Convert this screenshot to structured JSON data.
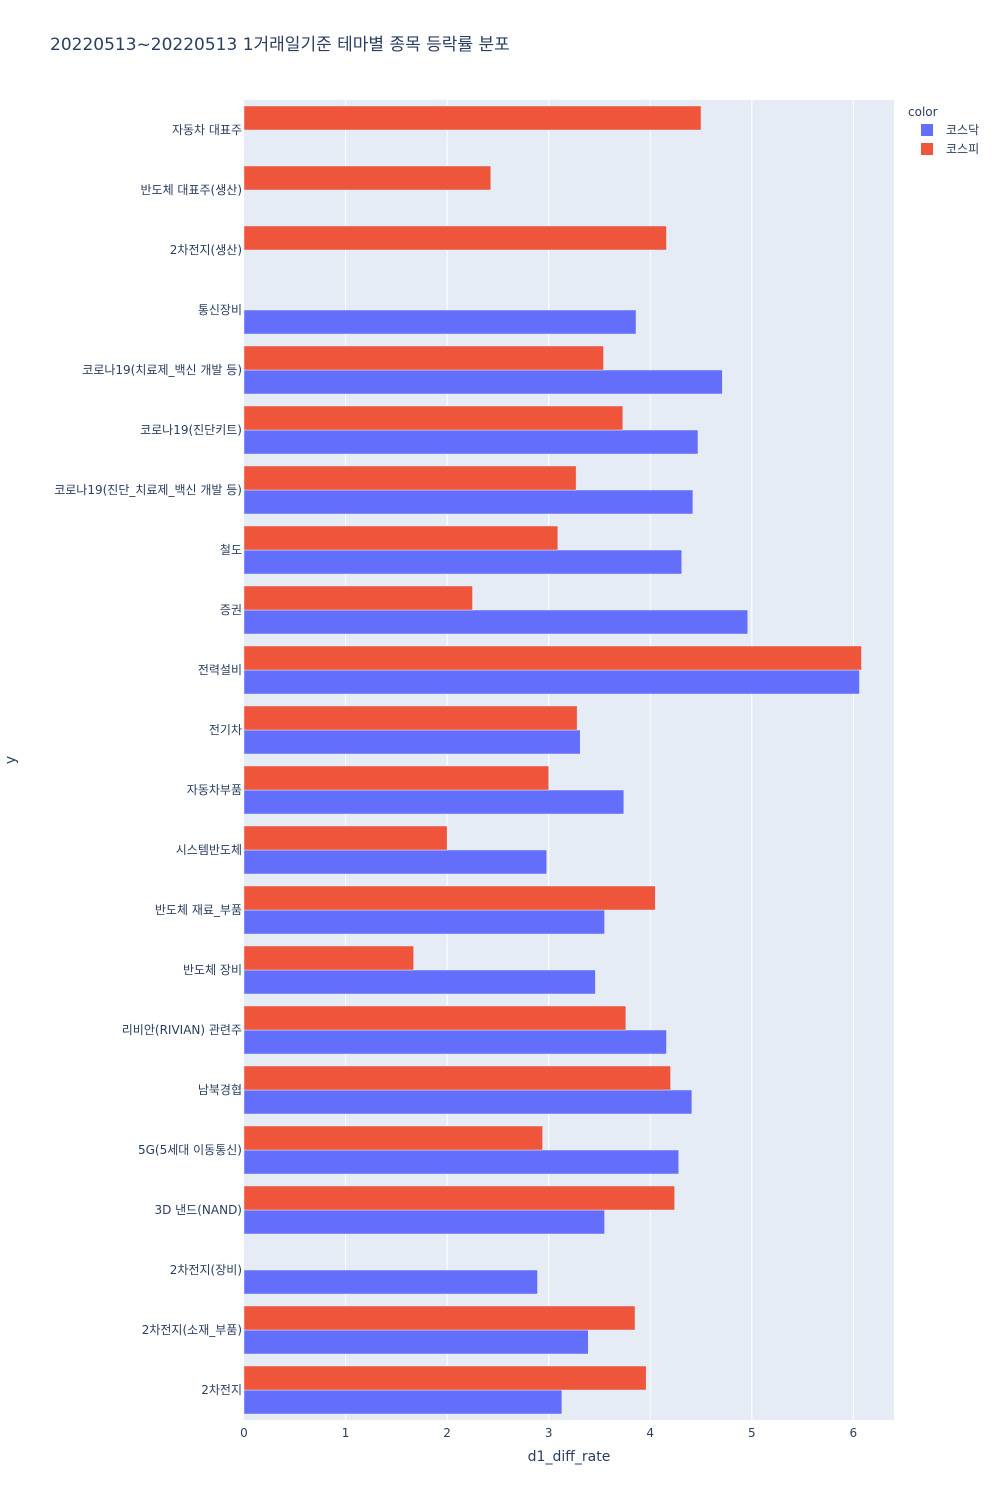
{
  "chart_data": {
    "type": "bar",
    "orientation": "horizontal",
    "barmode": "group",
    "title": "20220513~20220513 1거래일기준 테마별 종목 등락률 분포",
    "xlabel": "d1_diff_rate",
    "ylabel": "y",
    "xlim": [
      0,
      6.4
    ],
    "xticks": [
      0,
      1,
      2,
      3,
      4,
      5,
      6
    ],
    "grid": true,
    "legend": {
      "title": "color",
      "position": "top-right"
    },
    "categories": [
      "자동차 대표주",
      "반도체 대표주(생산)",
      "2차전지(생산)",
      "통신장비",
      "코로나19(치료제_백신 개발 등)",
      "코로나19(진단키트)",
      "코로나19(진단_치료제_백신 개발 등)",
      "철도",
      "증권",
      "전력설비",
      "전기차",
      "자동차부품",
      "시스템반도체",
      "반도체 재료_부품",
      "반도체 장비",
      "리비안(RIVIAN) 관련주",
      "남북경협",
      "5G(5세대 이동통신)",
      "3D 낸드(NAND)",
      "2차전지(장비)",
      "2차전지(소재_부품)",
      "2차전지"
    ],
    "series": [
      {
        "name": "코스닥",
        "color": "#636efa",
        "values": [
          null,
          null,
          null,
          3.86,
          4.71,
          4.47,
          4.42,
          4.31,
          4.96,
          6.06,
          3.31,
          3.74,
          2.98,
          3.55,
          3.46,
          4.16,
          4.41,
          4.28,
          3.55,
          2.89,
          3.39,
          3.13
        ]
      },
      {
        "name": "코스피",
        "color": "#ef553b",
        "values": [
          4.5,
          2.43,
          4.16,
          null,
          3.54,
          3.73,
          3.27,
          3.09,
          2.25,
          6.08,
          3.28,
          3.0,
          2.0,
          4.05,
          1.67,
          3.76,
          4.2,
          2.94,
          4.24,
          null,
          3.85,
          3.96
        ]
      }
    ]
  }
}
